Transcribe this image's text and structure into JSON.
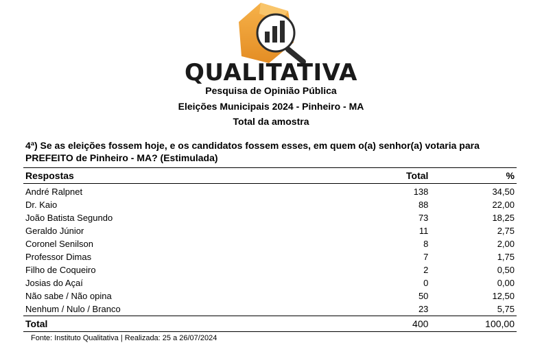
{
  "header": {
    "brand": "QUALITATIVA",
    "line1": "Pesquisa de Opinião Pública",
    "line2": "Eleições Municipais 2024 - Pinheiro - MA",
    "line3": "Total da amostra"
  },
  "question": {
    "line1": "4ª) Se as eleições fossem hoje, e os candidatos fossem esses, em quem o(a) senhor(a) votaria para",
    "line2": "PREFEITO de Pinheiro - MA? (Estimulada)"
  },
  "table": {
    "headers": {
      "respostas": "Respostas",
      "total": "Total",
      "pct": "%"
    },
    "rows": [
      {
        "name": "André Ralpnet",
        "total": "138",
        "pct": "34,50"
      },
      {
        "name": "Dr. Kaio",
        "total": "88",
        "pct": "22,00"
      },
      {
        "name": "João Batista Segundo",
        "total": "73",
        "pct": "18,25"
      },
      {
        "name": "Geraldo Júnior",
        "total": "11",
        "pct": "2,75"
      },
      {
        "name": "Coronel Senilson",
        "total": "8",
        "pct": "2,00"
      },
      {
        "name": "Professor Dimas",
        "total": "7",
        "pct": "1,75"
      },
      {
        "name": "Filho de Coqueiro",
        "total": "2",
        "pct": "0,50"
      },
      {
        "name": "Josias do Açaí",
        "total": "0",
        "pct": "0,00"
      },
      {
        "name": "Não sabe / Não opina",
        "total": "50",
        "pct": "12,50"
      },
      {
        "name": "Nenhum / Nulo / Branco",
        "total": "23",
        "pct": "5,75"
      }
    ],
    "total": {
      "label": "Total",
      "total": "400",
      "pct": "100,00"
    }
  },
  "footer": "Fonte: Instituto Qualitativa | Realizada:  25 a 26/07/2024",
  "logo": {
    "icon": "bar-chart-circle-icon",
    "colors": {
      "orange": "#f0a23a",
      "dark": "#2b2b2b"
    }
  }
}
